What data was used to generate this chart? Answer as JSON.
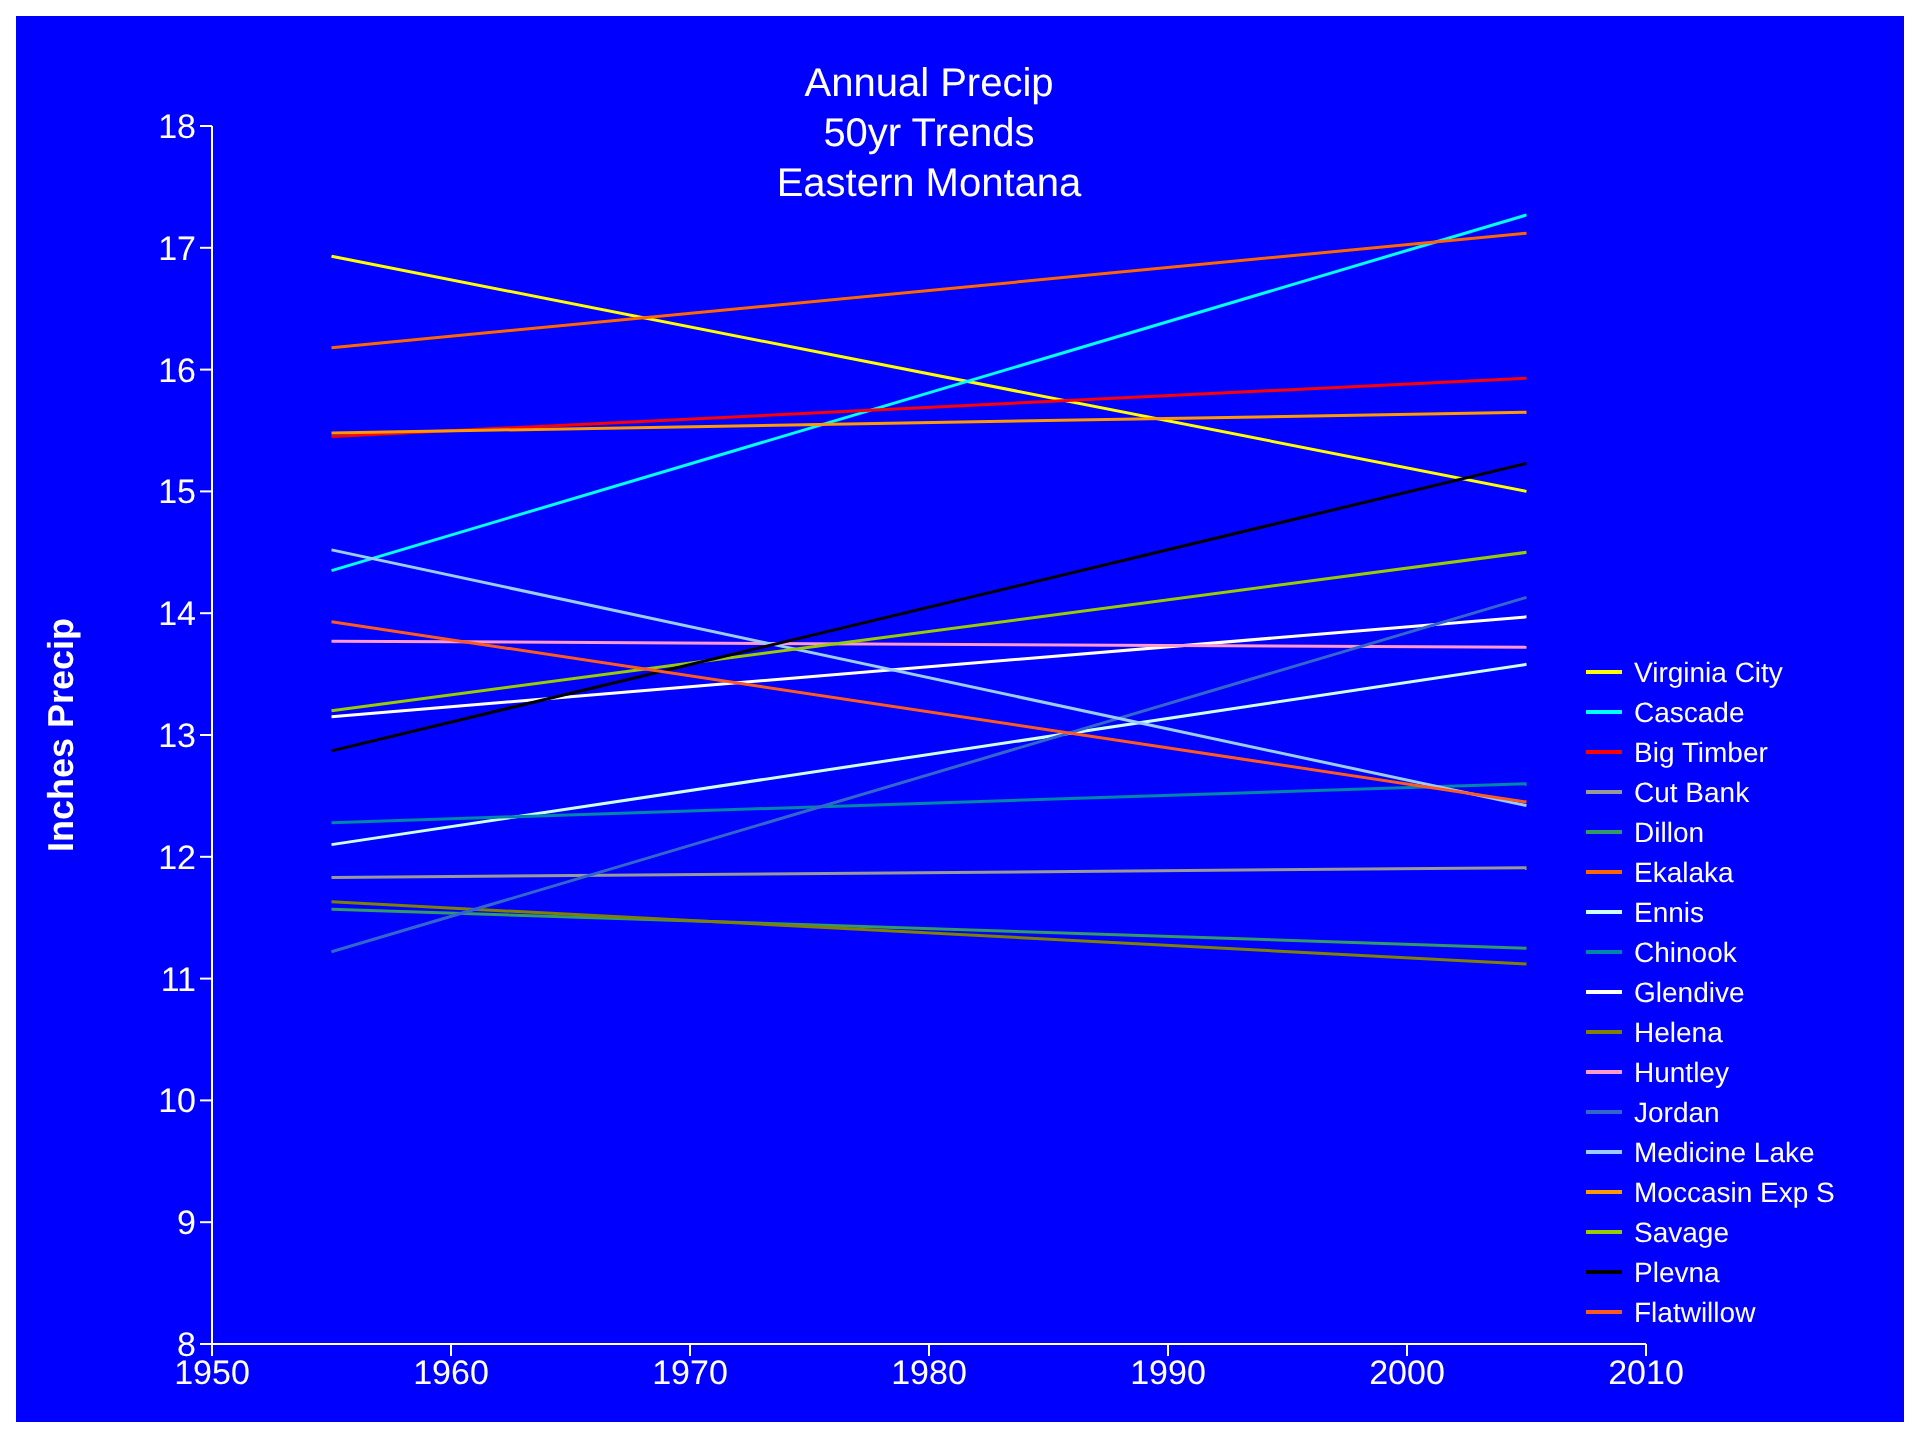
{
  "chart_data": {
    "type": "line",
    "title": "Annual Precip\n50yr Trends\nEastern Montana",
    "ylabel": "Inches Precip",
    "x": [
      1955,
      2005
    ],
    "xlim": [
      1950,
      2010
    ],
    "xticks": [
      1950,
      1960,
      1970,
      1980,
      1990,
      2000,
      2010
    ],
    "ylim": [
      8,
      18
    ],
    "yticks": [
      8,
      9,
      10,
      11,
      12,
      13,
      14,
      15,
      16,
      17,
      18
    ],
    "grid": false,
    "legend": "right",
    "marker": "none",
    "line_style": "solid",
    "series": [
      {
        "name": "Virginia City",
        "color": "#ffff00",
        "values": [
          16.93,
          15.0
        ]
      },
      {
        "name": "Cascade",
        "color": "#00ffff",
        "values": [
          14.35,
          17.27
        ]
      },
      {
        "name": "Big Timber",
        "color": "#ff0000",
        "values": [
          15.45,
          15.93
        ]
      },
      {
        "name": "Cut Bank",
        "color": "#999999",
        "values": [
          11.83,
          11.91
        ]
      },
      {
        "name": "Dillon",
        "color": "#339966",
        "values": [
          11.57,
          11.25
        ]
      },
      {
        "name": "Ekalaka",
        "color": "#ff6600",
        "values": [
          16.18,
          17.12
        ]
      },
      {
        "name": "Ennis",
        "color": "#ccffff",
        "values": [
          12.1,
          13.58
        ]
      },
      {
        "name": "Chinook",
        "color": "#0086a8",
        "values": [
          12.28,
          12.6
        ]
      },
      {
        "name": "Glendive",
        "color": "#ffffff",
        "values": [
          13.15,
          13.97
        ]
      },
      {
        "name": "Helena",
        "color": "#808000",
        "values": [
          11.63,
          11.12
        ]
      },
      {
        "name": "Huntley",
        "color": "#ff99cc",
        "values": [
          13.77,
          13.72
        ]
      },
      {
        "name": "Jordan",
        "color": "#3366cc",
        "values": [
          11.22,
          14.13
        ]
      },
      {
        "name": "Medicine Lake",
        "color": "#99ccff",
        "values": [
          14.52,
          12.42
        ]
      },
      {
        "name": "Moccasin Exp S",
        "color": "#ff9900",
        "values": [
          15.48,
          15.65
        ]
      },
      {
        "name": "Savage",
        "color": "#99cc00",
        "values": [
          13.2,
          14.5
        ]
      },
      {
        "name": "Plevna",
        "color": "#000000",
        "values": [
          12.87,
          15.23
        ]
      },
      {
        "name": "Flatwillow",
        "color": "#ff5a1e",
        "values": [
          13.93,
          12.45
        ]
      }
    ]
  }
}
